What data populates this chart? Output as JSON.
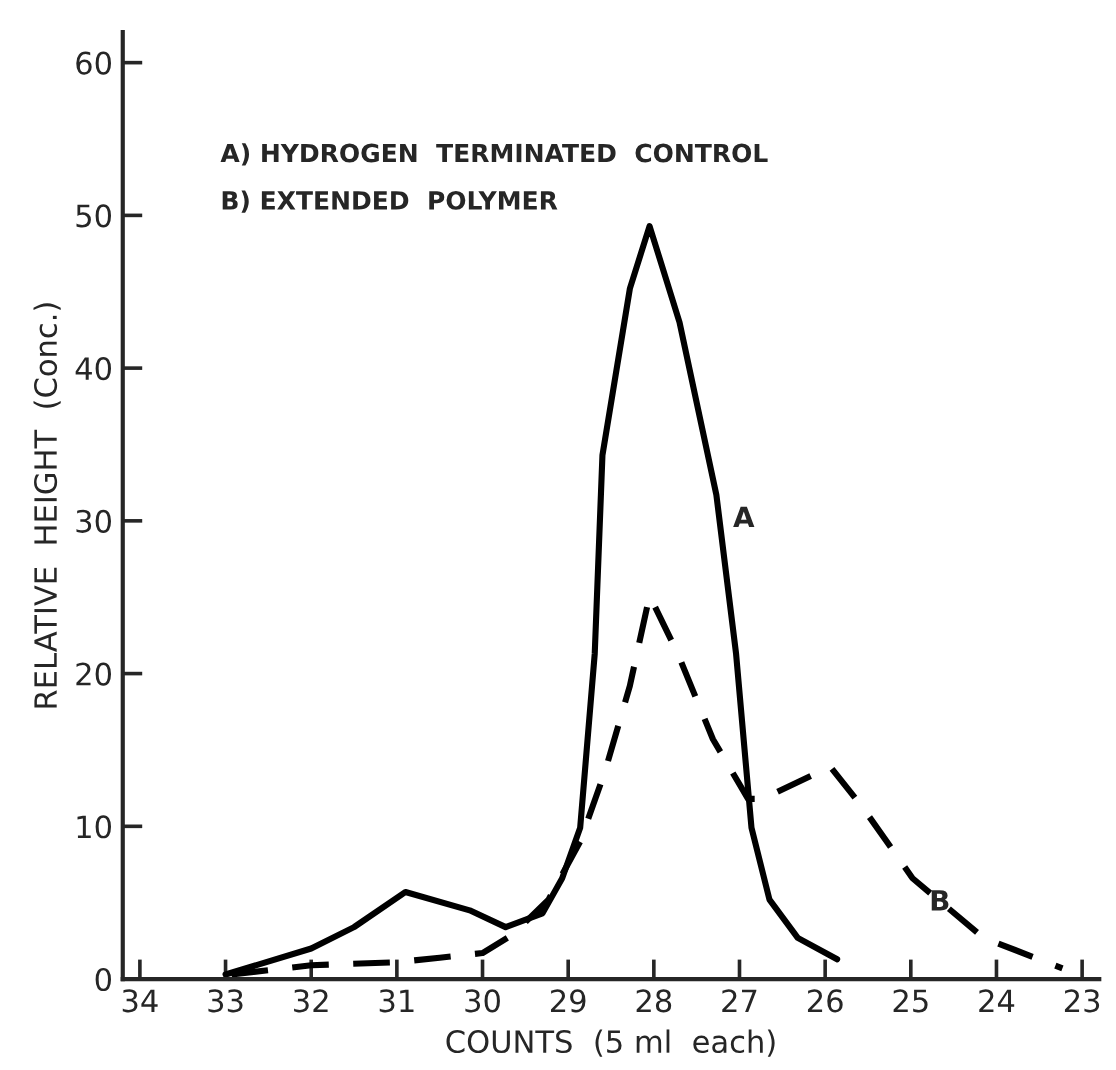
{
  "chart_data": {
    "type": "line",
    "xlabel": "COUNTS  (5 ml  each)",
    "ylabel": "RELATIVE  HEIGHT  (Conc.)",
    "xlim": [
      34.2,
      22.8
    ],
    "xticks": [
      34,
      33,
      32,
      31,
      30,
      29,
      28,
      27,
      26,
      25,
      24,
      23
    ],
    "ylim": [
      0,
      62
    ],
    "yticks": [
      0,
      10,
      20,
      30,
      40,
      50,
      60
    ],
    "grid": false,
    "legend": false,
    "annotations": [
      "A) HYDROGEN  TERMINATED  CONTROL",
      "B) EXTENDED  POLYMER",
      {
        "text": "A",
        "x": 27.27,
        "y": 31.7
      },
      {
        "text": "B",
        "x": 24.98,
        "y": 6.6
      }
    ],
    "series": [
      {
        "color": "#000000",
        "line_style": "solid",
        "x": [
          33,
          32,
          31.5,
          30.9,
          30.15,
          29.73,
          29.3,
          29.07,
          28.86,
          28.69,
          28.6,
          28.28,
          28.05,
          27.7,
          27.27,
          27.04,
          26.86,
          26.65,
          26.32,
          25.86
        ],
        "values": [
          0.3,
          2.0,
          3.4,
          5.7,
          4.5,
          3.4,
          4.3,
          6.6,
          9.9,
          21.3,
          34.3,
          45.2,
          49.3,
          43,
          31.7,
          21.3,
          9.9,
          5.2,
          2.7,
          1.3
        ]
      },
      {
        "color": "#000000",
        "line_style": "dashed",
        "x": [
          32.93,
          32,
          31,
          30.5,
          30,
          29.65,
          29.23,
          28.86,
          28.57,
          28.28,
          28.05,
          27.72,
          27.31,
          26.9,
          26.73,
          25.94,
          25.57,
          24.98,
          24.15,
          23.23
        ],
        "values": [
          0.3,
          0.9,
          1.1,
          1.4,
          1.7,
          2.9,
          5.2,
          9.0,
          13.6,
          19.2,
          25.1,
          21.3,
          15.7,
          11.8,
          11.8,
          13.9,
          11.3,
          6.6,
          2.7,
          0.7
        ]
      }
    ]
  }
}
